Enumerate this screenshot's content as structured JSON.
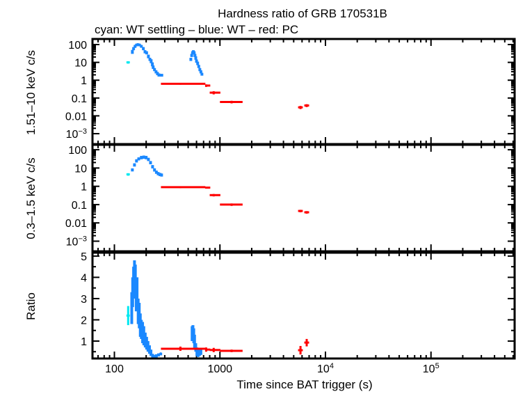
{
  "chart_data": {
    "type": "scatter",
    "title": "Hardness ratio of GRB 170531B",
    "subtitle": "cyan: WT settling – blue: WT – red: PC",
    "xlabel": "Time since BAT trigger (s)",
    "xscale": "log",
    "xlim": [
      62,
      620000
    ],
    "xticks": [
      {
        "v": 100,
        "label": "100"
      },
      {
        "v": 1000,
        "label": "1000"
      },
      {
        "v": 10000,
        "label": "10",
        "sup": "4"
      },
      {
        "v": 100000,
        "label": "10",
        "sup": "5"
      }
    ],
    "grid": false,
    "colors": {
      "cyan": "#00e8f0",
      "blue": "#1a88ff",
      "red": "#ff0000"
    },
    "point_format": "[x, xmin, xmax, y, ymin, ymax]",
    "panels": [
      {
        "ylabel": "1.51–10 keV c/s",
        "yscale": "log",
        "ylim": [
          0.00026,
          205
        ],
        "yticks": [
          {
            "v": 100,
            "label": "100"
          },
          {
            "v": 10,
            "label": "10"
          },
          {
            "v": 1,
            "label": "1"
          },
          {
            "v": 0.1,
            "label": "0.1"
          },
          {
            "v": 0.01,
            "label": "0.01"
          },
          {
            "v": 0.001,
            "label": "10",
            "sup": "−3"
          }
        ],
        "series": {
          "cyan": [
            [
              135,
              130,
              140,
              10,
              8.5,
              11.5
            ]
          ],
          "blue": [
            [
              148,
              145,
              151,
              40,
              30,
              50
            ],
            [
              152,
              149,
              155,
              60,
              48,
              72
            ],
            [
              157,
              154,
              160,
              80,
              65,
              95
            ],
            [
              162,
              159,
              165,
              95,
              80,
              110
            ],
            [
              167,
              164,
              170,
              100,
              85,
              115
            ],
            [
              173,
              170,
              176,
              95,
              80,
              110
            ],
            [
              180,
              177,
              183,
              80,
              66,
              94
            ],
            [
              188,
              185,
              191,
              60,
              48,
              72
            ],
            [
              195,
              192,
              198,
              40,
              32,
              48
            ],
            [
              202,
              199,
              205,
              35,
              28,
              42
            ],
            [
              210,
              207,
              213,
              22,
              17,
              27
            ],
            [
              217,
              214,
              220,
              15,
              12,
              18
            ],
            [
              223,
              220,
              226,
              12,
              9,
              15
            ],
            [
              229,
              226,
              232,
              8,
              6,
              10
            ],
            [
              233,
              230,
              236,
              5.5,
              4.3,
              6.7
            ],
            [
              240,
              237,
              243,
              4,
              3.2,
              4.8
            ],
            [
              248,
              245,
              251,
              3,
              2.4,
              3.6
            ],
            [
              256,
              253,
              259,
              2.4,
              1.9,
              2.9
            ],
            [
              264,
              261,
              267,
              2,
              1.6,
              2.4
            ],
            [
              275,
              270,
              290,
              1.9,
              1.6,
              2.2
            ],
            [
              530,
              525,
              535,
              15,
              12,
              18
            ],
            [
              540,
              535,
              545,
              25,
              20,
              30
            ],
            [
              550,
              545,
              555,
              35,
              28,
              42
            ],
            [
              560,
              555,
              565,
              40,
              32,
              48
            ],
            [
              570,
              565,
              575,
              35,
              28,
              42
            ],
            [
              580,
              575,
              585,
              25,
              20,
              30
            ],
            [
              590,
              585,
              595,
              18,
              14,
              22
            ],
            [
              600,
              595,
              605,
              12,
              9.5,
              14.5
            ],
            [
              615,
              610,
              620,
              9,
              7,
              11
            ],
            [
              630,
              625,
              635,
              6,
              4.8,
              7.2
            ],
            [
              645,
              640,
              650,
              4,
              3.2,
              4.8
            ],
            [
              660,
              655,
              665,
              3,
              2.4,
              3.6
            ],
            [
              675,
              670,
              680,
              2.2,
              1.8,
              2.6
            ]
          ],
          "red": [
            [
              422,
              276,
              728,
              0.63,
              0.56,
              0.71
            ],
            [
              740,
              728,
              810,
              0.5,
              0.42,
              0.58
            ],
            [
              873,
              800,
              1010,
              0.2,
              0.16,
              0.24
            ],
            [
              1290,
              1000,
              1640,
              0.06,
              0.05,
              0.07
            ],
            [
              5800,
              5500,
              6100,
              0.03,
              0.024,
              0.036
            ],
            [
              6640,
              6300,
              7000,
              0.038,
              0.031,
              0.045
            ]
          ]
        }
      },
      {
        "ylabel": "0.3–1.5 keV c/s",
        "yscale": "log",
        "ylim": [
          0.00028,
          186
        ],
        "yticks": [
          {
            "v": 100,
            "label": "100"
          },
          {
            "v": 10,
            "label": "10"
          },
          {
            "v": 1,
            "label": "1"
          },
          {
            "v": 0.1,
            "label": "0.1"
          },
          {
            "v": 0.01,
            "label": "0.01"
          },
          {
            "v": 0.001,
            "label": "10",
            "sup": "−3"
          }
        ],
        "series": {
          "cyan": [
            [
              135,
              130,
              140,
              4.5,
              3.8,
              5.2
            ]
          ],
          "blue": [
            [
              148,
              145,
              151,
              8,
              6.5,
              9.5
            ],
            [
              155,
              152,
              158,
              15,
              12,
              18
            ],
            [
              162,
              159,
              165,
              25,
              20,
              30
            ],
            [
              170,
              167,
              173,
              32,
              26,
              38
            ],
            [
              180,
              177,
              183,
              38,
              30,
              46
            ],
            [
              190,
              187,
              193,
              40,
              32,
              48
            ],
            [
              200,
              197,
              203,
              38,
              30,
              46
            ],
            [
              210,
              207,
              213,
              30,
              24,
              36
            ],
            [
              220,
              217,
              223,
              20,
              16,
              24
            ],
            [
              230,
              227,
              233,
              12,
              9.5,
              14.5
            ],
            [
              240,
              237,
              243,
              8,
              6.4,
              9.6
            ],
            [
              250,
              247,
              253,
              6,
              4.8,
              7.2
            ],
            [
              260,
              257,
              263,
              5,
              4,
              6
            ],
            [
              270,
              267,
              273,
              4.5,
              3.6,
              5.4
            ],
            [
              280,
              276,
              284,
              4.2,
              3.4,
              5
            ]
          ],
          "blue2": [],
          "red": [
            [
              422,
              276,
              728,
              0.9,
              0.8,
              1.0
            ],
            [
              740,
              728,
              810,
              0.85,
              0.75,
              0.95
            ],
            [
              873,
              800,
              1010,
              0.33,
              0.28,
              0.38
            ],
            [
              1290,
              1000,
              1640,
              0.1,
              0.085,
              0.115
            ],
            [
              5800,
              5500,
              6100,
              0.045,
              0.038,
              0.052
            ],
            [
              6640,
              6300,
              7000,
              0.038,
              0.032,
              0.044
            ]
          ]
        }
      },
      {
        "ylabel": "Ratio",
        "yscale": "linear",
        "ylim": [
          0.18,
          5.16
        ],
        "yticks": [
          {
            "v": 5,
            "label": "5"
          },
          {
            "v": 4,
            "label": "4"
          },
          {
            "v": 3,
            "label": "3"
          },
          {
            "v": 2,
            "label": "2"
          },
          {
            "v": 1,
            "label": "1"
          }
        ],
        "series": {
          "cyan": [
            [
              135,
              130,
              140,
              2.2,
              1.75,
              2.65
            ]
          ],
          "blue": [
            [
              146,
              144,
              148,
              2.5,
              1.8,
              3.3
            ],
            [
              149,
              147,
              151,
              3.3,
              2.6,
              4.0
            ],
            [
              152,
              150,
              154,
              3.8,
              3.0,
              4.5
            ],
            [
              155,
              153,
              157,
              4.2,
              3.4,
              4.8
            ],
            [
              158,
              156,
              160,
              3.9,
              3.0,
              4.6
            ],
            [
              161,
              159,
              163,
              3.0,
              2.4,
              3.8
            ],
            [
              164,
              162,
              166,
              3.3,
              2.5,
              4.0
            ],
            [
              168,
              166,
              170,
              2.5,
              1.8,
              3.0
            ],
            [
              172,
              170,
              174,
              2.2,
              1.6,
              2.8
            ],
            [
              176,
              174,
              178,
              1.9,
              1.2,
              2.3
            ],
            [
              180,
              178,
              182,
              1.6,
              1.1,
              2.0
            ],
            [
              185,
              183,
              187,
              1.4,
              0.9,
              1.9
            ],
            [
              190,
              188,
              192,
              1.3,
              0.8,
              1.7
            ],
            [
              196,
              194,
              198,
              1.0,
              0.7,
              1.4
            ],
            [
              202,
              200,
              204,
              0.9,
              0.6,
              1.2
            ],
            [
              208,
              206,
              210,
              0.8,
              0.5,
              1.0
            ],
            [
              215,
              213,
              217,
              0.6,
              0.4,
              0.8
            ],
            [
              222,
              220,
              224,
              0.45,
              0.3,
              0.6
            ],
            [
              230,
              227,
              233,
              0.3,
              0.2,
              0.4
            ],
            [
              240,
              237,
              243,
              0.25,
              0.18,
              0.35
            ],
            [
              250,
              247,
              253,
              0.3,
              0.22,
              0.38
            ],
            [
              262,
              259,
              265,
              0.35,
              0.28,
              0.42
            ],
            [
              275,
              270,
              280,
              0.4,
              0.33,
              0.45
            ],
            [
              545,
              540,
              550,
              1.4,
              1.0,
              1.7
            ],
            [
              555,
              550,
              560,
              1.5,
              1.1,
              1.75
            ],
            [
              565,
              560,
              570,
              1.3,
              0.9,
              1.6
            ],
            [
              575,
              570,
              580,
              1.0,
              0.6,
              1.3
            ],
            [
              590,
              585,
              595,
              0.7,
              0.5,
              0.9
            ],
            [
              605,
              600,
              610,
              0.5,
              0.3,
              0.7
            ],
            [
              620,
              615,
              625,
              0.4,
              0.25,
              0.55
            ],
            [
              640,
              635,
              645,
              0.45,
              0.3,
              0.6
            ],
            [
              660,
              655,
              665,
              0.5,
              0.35,
              0.6
            ]
          ],
          "red": [
            [
              422,
              276,
              728,
              0.64,
              0.54,
              0.74
            ],
            [
              740,
              728,
              810,
              0.6,
              0.5,
              0.7
            ],
            [
              873,
              800,
              1010,
              0.58,
              0.48,
              0.68
            ],
            [
              1290,
              1000,
              1640,
              0.54,
              0.48,
              0.6
            ],
            [
              5800,
              5500,
              6100,
              0.57,
              0.37,
              0.77
            ],
            [
              6640,
              6300,
              7000,
              0.93,
              0.75,
              1.1
            ]
          ]
        }
      }
    ]
  }
}
